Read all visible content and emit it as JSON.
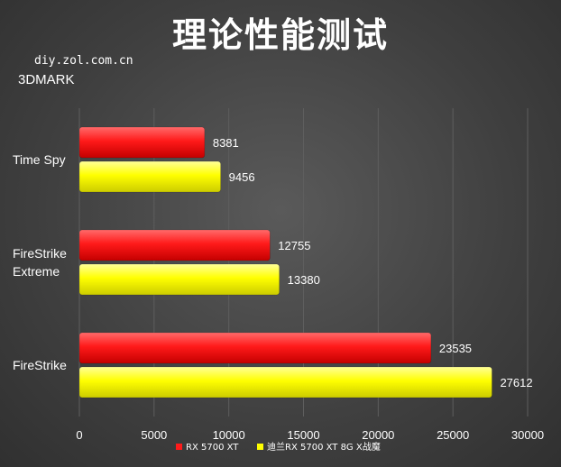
{
  "header": {
    "title": "理论性能测试",
    "site": "diy.zol.com.cn",
    "benchmark": "3DMARK"
  },
  "colors": {
    "series_red": "#ff1a1a",
    "series_yellow": "#ffff00",
    "text": "#ffffff",
    "grid": "#5e5e5e"
  },
  "chart_data": {
    "type": "bar",
    "orientation": "horizontal",
    "categories": [
      [
        "Time Spy"
      ],
      [
        "FireStrike",
        "Extreme"
      ],
      [
        "FireStrike"
      ]
    ],
    "series": [
      {
        "name": "RX 5700 XT",
        "values": [
          8381,
          12755,
          23535
        ]
      },
      {
        "name": "迪兰RX 5700 XT 8G X战魔",
        "values": [
          9456,
          13380,
          27612
        ]
      }
    ],
    "xlim": [
      0,
      30000
    ],
    "ticks": [
      0,
      5000,
      10000,
      15000,
      20000,
      25000,
      30000
    ],
    "grid": true,
    "legend": "bottom"
  }
}
